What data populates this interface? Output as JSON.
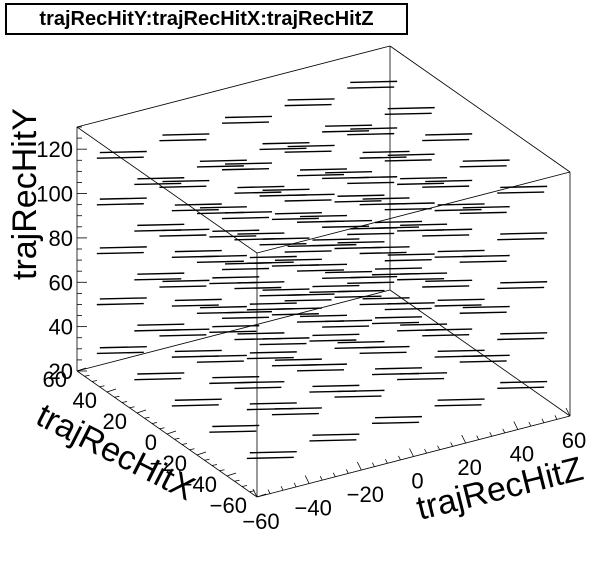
{
  "chart_data": {
    "type": "scatter",
    "dimensions": 3,
    "title": "trajRecHitY:trajRecHitX:trajRecHitZ",
    "xlabel": "trajRecHitZ",
    "ylabel": "trajRecHitX",
    "zlabel": "trajRecHitY",
    "xlim": [
      -60,
      60
    ],
    "ylim": [
      -60,
      60
    ],
    "zlim": [
      20,
      130
    ],
    "x_ticks": [
      "−60",
      "−40",
      "−20",
      "0",
      "20",
      "40",
      "60"
    ],
    "y_ticks": [
      "−60",
      "−40",
      "−20",
      "0",
      "20",
      "40",
      "60"
    ],
    "z_ticks": [
      "20",
      "40",
      "60",
      "80",
      "100",
      "120"
    ],
    "marker_color": "#000000",
    "segments_description": "short track segments arranged in a regular grid of modules",
    "module_grid": {
      "x_centers": [
        -48,
        -24,
        0,
        24,
        48
      ],
      "y_centers": [
        -50,
        -25,
        0,
        25,
        50
      ],
      "z_centers": [
        33,
        55,
        78,
        100,
        121
      ],
      "segment_half_length": 9
    }
  }
}
